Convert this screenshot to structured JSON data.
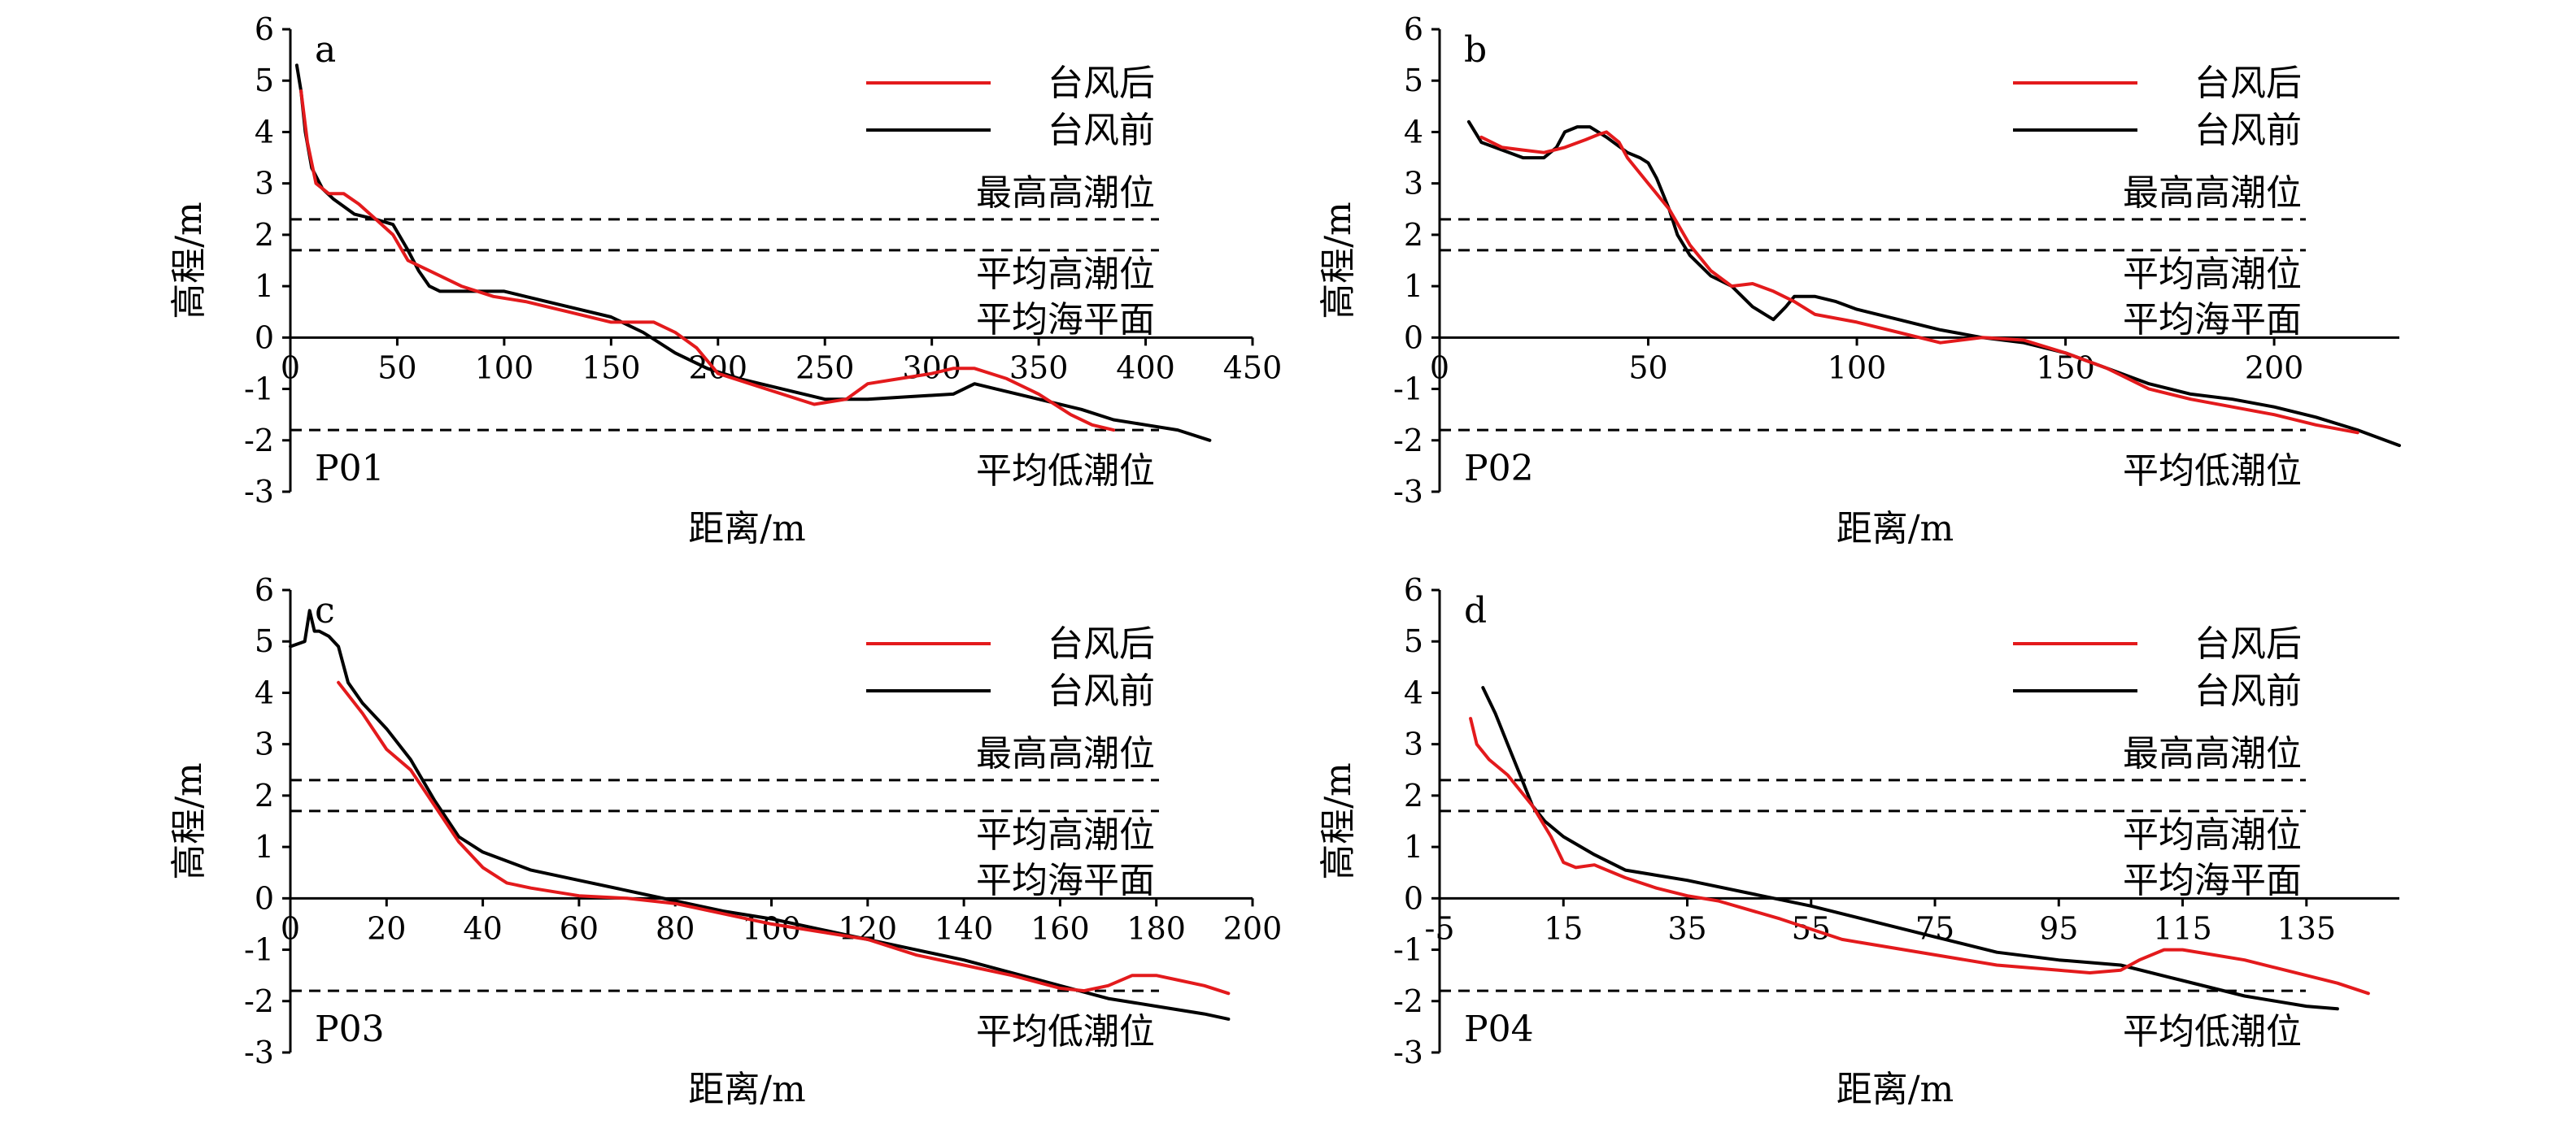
{
  "colors": {
    "after": "#e31a1c",
    "before": "#000000"
  },
  "chart_data": [
    {
      "type": "line",
      "panel_letter": "a",
      "profile": "P01",
      "xlabel": "距离/m",
      "ylabel": "高程/m",
      "xlim": [
        0,
        450
      ],
      "ylim": [
        -3,
        6
      ],
      "xticks": [
        0,
        50,
        100,
        150,
        200,
        250,
        300,
        350,
        400,
        450
      ],
      "yticks": [
        -3,
        -2,
        -1,
        0,
        1,
        2,
        3,
        4,
        5,
        6
      ],
      "levels": [
        {
          "name": "最高高潮位",
          "value": 2.3
        },
        {
          "name": "平均高潮位",
          "value": 1.7
        },
        {
          "name": "平均海平面",
          "value": null
        },
        {
          "name": "平均低潮位",
          "value": -1.8
        }
      ],
      "series": [
        {
          "name": "台风后",
          "color": "#e31a1c",
          "x": [
            5,
            8,
            12,
            18,
            25,
            32,
            40,
            48,
            55,
            65,
            80,
            95,
            110,
            130,
            150,
            170,
            180,
            190,
            200,
            215,
            230,
            245,
            260,
            270,
            285,
            300,
            310,
            320,
            335,
            350,
            365,
            375,
            385
          ],
          "y": [
            4.8,
            3.8,
            3.0,
            2.8,
            2.8,
            2.6,
            2.3,
            2.0,
            1.5,
            1.3,
            1.0,
            0.8,
            0.7,
            0.5,
            0.3,
            0.3,
            0.1,
            -0.2,
            -0.7,
            -0.9,
            -1.1,
            -1.3,
            -1.2,
            -0.9,
            -0.8,
            -0.7,
            -0.6,
            -0.6,
            -0.8,
            -1.1,
            -1.5,
            -1.7,
            -1.8
          ]
        },
        {
          "name": "台风前",
          "color": "#000000",
          "x": [
            3,
            5,
            7,
            10,
            15,
            20,
            30,
            40,
            48,
            55,
            60,
            65,
            70,
            80,
            90,
            100,
            110,
            130,
            150,
            165,
            180,
            195,
            210,
            230,
            250,
            270,
            290,
            310,
            320,
            330,
            350,
            370,
            385,
            400,
            415,
            430
          ],
          "y": [
            5.3,
            4.8,
            4.0,
            3.3,
            2.9,
            2.7,
            2.4,
            2.3,
            2.2,
            1.7,
            1.3,
            1.0,
            0.9,
            0.9,
            0.9,
            0.9,
            0.8,
            0.6,
            0.4,
            0.1,
            -0.3,
            -0.6,
            -0.8,
            -1.0,
            -1.2,
            -1.2,
            -1.15,
            -1.1,
            -0.9,
            -1.0,
            -1.2,
            -1.4,
            -1.6,
            -1.7,
            -1.8,
            -2.0
          ]
        }
      ]
    },
    {
      "type": "line",
      "panel_letter": "b",
      "profile": "P02",
      "xlabel": "距离/m",
      "ylabel": "高程/m",
      "xlim": [
        0,
        230
      ],
      "ylim": [
        -3,
        6
      ],
      "xticks": [
        0,
        50,
        100,
        150,
        200
      ],
      "yticks": [
        -3,
        -2,
        -1,
        0,
        1,
        2,
        3,
        4,
        5,
        6
      ],
      "levels": [
        {
          "name": "最高高潮位",
          "value": 2.3
        },
        {
          "name": "平均高潮位",
          "value": 1.7
        },
        {
          "name": "平均海平面",
          "value": null
        },
        {
          "name": "平均低潮位",
          "value": -1.8
        }
      ],
      "series": [
        {
          "name": "台风后",
          "color": "#e31a1c",
          "x": [
            10,
            15,
            20,
            25,
            30,
            35,
            38,
            40,
            43,
            45,
            50,
            55,
            60,
            65,
            70,
            75,
            80,
            85,
            90,
            100,
            110,
            115,
            120,
            130,
            140,
            150,
            160,
            170,
            180,
            190,
            200,
            210,
            220
          ],
          "y": [
            3.9,
            3.7,
            3.65,
            3.6,
            3.7,
            3.85,
            3.95,
            4.0,
            3.8,
            3.5,
            3.0,
            2.5,
            1.8,
            1.3,
            1.0,
            1.05,
            0.9,
            0.7,
            0.45,
            0.3,
            0.1,
            0.0,
            -0.1,
            0.0,
            -0.05,
            -0.3,
            -0.6,
            -1.0,
            -1.2,
            -1.35,
            -1.5,
            -1.7,
            -1.85
          ]
        },
        {
          "name": "台风前",
          "color": "#000000",
          "x": [
            7,
            10,
            15,
            20,
            25,
            28,
            30,
            33,
            36,
            40,
            45,
            48,
            50,
            52,
            55,
            57,
            60,
            65,
            70,
            75,
            78,
            80,
            83,
            85,
            90,
            95,
            100,
            110,
            120,
            130,
            140,
            150,
            160,
            170,
            180,
            190,
            200,
            210,
            220,
            230
          ],
          "y": [
            4.2,
            3.8,
            3.65,
            3.5,
            3.5,
            3.7,
            4.0,
            4.1,
            4.1,
            3.9,
            3.6,
            3.5,
            3.4,
            3.1,
            2.5,
            2.0,
            1.6,
            1.2,
            1.0,
            0.6,
            0.45,
            0.35,
            0.6,
            0.8,
            0.8,
            0.7,
            0.55,
            0.35,
            0.15,
            0.0,
            -0.1,
            -0.3,
            -0.6,
            -0.9,
            -1.1,
            -1.2,
            -1.35,
            -1.55,
            -1.8,
            -2.1
          ]
        }
      ]
    },
    {
      "type": "line",
      "panel_letter": "c",
      "profile": "P03",
      "xlabel": "距离/m",
      "ylabel": "高程/m",
      "xlim": [
        0,
        200
      ],
      "ylim": [
        -3,
        6
      ],
      "xticks": [
        0,
        20,
        40,
        60,
        80,
        100,
        120,
        140,
        160,
        180,
        200
      ],
      "yticks": [
        -3,
        -2,
        -1,
        0,
        1,
        2,
        3,
        4,
        5,
        6
      ],
      "levels": [
        {
          "name": "最高高潮位",
          "value": 2.3
        },
        {
          "name": "平均高潮位",
          "value": 1.7
        },
        {
          "name": "平均海平面",
          "value": null
        },
        {
          "name": "平均低潮位",
          "value": -1.8
        }
      ],
      "series": [
        {
          "name": "台风后",
          "color": "#e31a1c",
          "x": [
            10,
            15,
            20,
            25,
            30,
            35,
            40,
            45,
            50,
            60,
            70,
            80,
            90,
            100,
            110,
            120,
            130,
            140,
            150,
            160,
            165,
            170,
            175,
            180,
            185,
            190,
            195
          ],
          "y": [
            4.2,
            3.6,
            2.9,
            2.5,
            1.8,
            1.1,
            0.6,
            0.3,
            0.2,
            0.05,
            0.0,
            -0.1,
            -0.3,
            -0.5,
            -0.65,
            -0.8,
            -1.1,
            -1.3,
            -1.5,
            -1.75,
            -1.8,
            -1.7,
            -1.5,
            -1.5,
            -1.6,
            -1.7,
            -1.85
          ]
        },
        {
          "name": "台风前",
          "color": "#000000",
          "x": [
            0,
            3,
            4,
            5,
            6,
            8,
            10,
            12,
            15,
            20,
            25,
            30,
            35,
            40,
            50,
            60,
            70,
            80,
            90,
            100,
            110,
            120,
            130,
            140,
            150,
            160,
            170,
            180,
            190,
            195
          ],
          "y": [
            4.9,
            5.0,
            5.6,
            5.2,
            5.2,
            5.1,
            4.9,
            4.2,
            3.8,
            3.3,
            2.7,
            1.9,
            1.2,
            0.9,
            0.55,
            0.35,
            0.15,
            -0.05,
            -0.25,
            -0.4,
            -0.6,
            -0.8,
            -1.0,
            -1.2,
            -1.45,
            -1.7,
            -1.95,
            -2.1,
            -2.25,
            -2.35
          ]
        }
      ]
    },
    {
      "type": "line",
      "panel_letter": "d",
      "profile": "P04",
      "xlabel": "距离/m",
      "ylabel": "高程/m",
      "xlim": [
        -5,
        150
      ],
      "ylim": [
        -3,
        6
      ],
      "xticks": [
        -5,
        15,
        35,
        55,
        75,
        95,
        115,
        135
      ],
      "yticks": [
        -3,
        -2,
        -1,
        0,
        1,
        2,
        3,
        4,
        5,
        6
      ],
      "levels": [
        {
          "name": "最高高潮位",
          "value": 2.3
        },
        {
          "name": "平均高潮位",
          "value": 1.7
        },
        {
          "name": "平均海平面",
          "value": null
        },
        {
          "name": "平均低潮位",
          "value": -1.8
        }
      ],
      "series": [
        {
          "name": "台风后",
          "color": "#e31a1c",
          "x": [
            0,
            1,
            3,
            6,
            10,
            13,
            15,
            17,
            20,
            25,
            30,
            35,
            40,
            50,
            60,
            75,
            85,
            95,
            100,
            105,
            108,
            112,
            115,
            120,
            125,
            130,
            135,
            140,
            145
          ],
          "y": [
            3.5,
            3.0,
            2.7,
            2.4,
            1.8,
            1.2,
            0.7,
            0.6,
            0.65,
            0.4,
            0.2,
            0.05,
            -0.05,
            -0.4,
            -0.8,
            -1.1,
            -1.3,
            -1.4,
            -1.45,
            -1.4,
            -1.2,
            -1.0,
            -1.0,
            -1.1,
            -1.2,
            -1.35,
            -1.5,
            -1.65,
            -1.85
          ]
        },
        {
          "name": "台风前",
          "color": "#000000",
          "x": [
            2,
            4,
            6,
            8,
            10,
            12,
            15,
            20,
            25,
            35,
            45,
            55,
            65,
            75,
            85,
            95,
            105,
            115,
            120,
            125,
            130,
            135,
            140
          ],
          "y": [
            4.1,
            3.6,
            3.0,
            2.4,
            1.8,
            1.5,
            1.2,
            0.85,
            0.55,
            0.35,
            0.1,
            -0.15,
            -0.45,
            -0.75,
            -1.05,
            -1.2,
            -1.3,
            -1.6,
            -1.75,
            -1.9,
            -2.0,
            -2.1,
            -2.15
          ]
        }
      ]
    }
  ]
}
